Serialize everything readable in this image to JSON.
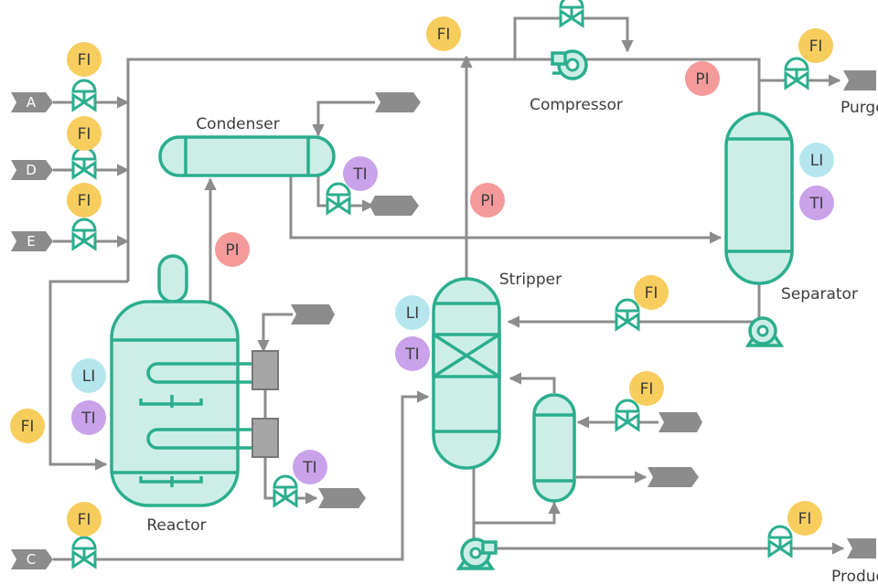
{
  "units": {
    "reactor": "Reactor",
    "condenser": "Condenser",
    "compressor": "Compressor",
    "separator": "Separator",
    "stripper": "Stripper"
  },
  "streams": {
    "a": "A",
    "d": "D",
    "e": "E",
    "c": "C",
    "purge": "Purge",
    "product": "Product"
  },
  "instruments": {
    "fi": "FI",
    "pi": "PI",
    "ti": "TI",
    "li": "LI"
  },
  "colors": {
    "vessel_stroke": "#2bae8e",
    "vessel_fill": "#cdeee6",
    "pipe": "#8c8c8c",
    "fi": "#f7cd5e",
    "pi": "#f49a9a",
    "ti": "#c9a2ea",
    "li": "#b5e6ee",
    "heat_exchanger": "#a6a6a6"
  }
}
